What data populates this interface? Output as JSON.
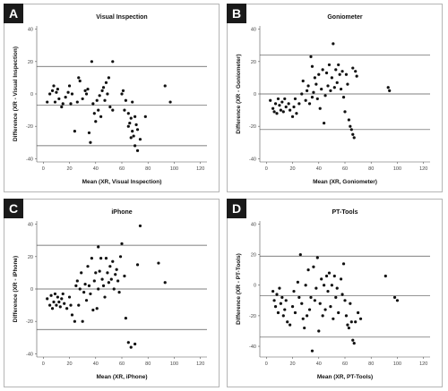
{
  "panels": [
    {
      "letter": "A"
    },
    {
      "letter": "B"
    },
    {
      "letter": "C"
    },
    {
      "letter": "D"
    }
  ],
  "chart_data": [
    {
      "type": "scatter",
      "title": "Visual Inspection",
      "xlabel": "Mean (XR, Visual Inspection)",
      "ylabel": "Difference (XR - Visual Inspection)",
      "xlim": [
        -5,
        125
      ],
      "ylim": [
        -42,
        42
      ],
      "xticks": [
        0,
        20,
        40,
        60,
        80,
        100,
        120
      ],
      "yticks": [
        -40,
        -20,
        0,
        20,
        40
      ],
      "reference_lines": [
        17,
        -7,
        -32
      ],
      "points": [
        [
          3,
          -5
        ],
        [
          5,
          0
        ],
        [
          7,
          2
        ],
        [
          8,
          5
        ],
        [
          9,
          -5
        ],
        [
          10,
          1
        ],
        [
          11,
          3
        ],
        [
          12,
          -3
        ],
        [
          14,
          -8
        ],
        [
          15,
          -6
        ],
        [
          17,
          -2
        ],
        [
          19,
          1
        ],
        [
          20,
          5
        ],
        [
          21,
          -6
        ],
        [
          22,
          0
        ],
        [
          24,
          -23
        ],
        [
          26,
          -5
        ],
        [
          27,
          10
        ],
        [
          28,
          8
        ],
        [
          30,
          -3
        ],
        [
          32,
          2
        ],
        [
          33,
          0
        ],
        [
          34,
          3
        ],
        [
          35,
          -24
        ],
        [
          36,
          -30
        ],
        [
          37,
          20
        ],
        [
          38,
          -6
        ],
        [
          39,
          -12
        ],
        [
          40,
          -17
        ],
        [
          41,
          -4
        ],
        [
          42,
          -10
        ],
        [
          43,
          -1
        ],
        [
          44,
          -14
        ],
        [
          45,
          2
        ],
        [
          46,
          4
        ],
        [
          47,
          -4
        ],
        [
          48,
          7
        ],
        [
          49,
          0
        ],
        [
          50,
          10
        ],
        [
          51,
          -8
        ],
        [
          53,
          20
        ],
        [
          53,
          -10
        ],
        [
          60,
          0
        ],
        [
          61,
          2
        ],
        [
          62,
          -10
        ],
        [
          63,
          -4
        ],
        [
          65,
          -12
        ],
        [
          65,
          -20
        ],
        [
          66,
          -18
        ],
        [
          67,
          -15
        ],
        [
          67,
          -27
        ],
        [
          68,
          -23
        ],
        [
          69,
          -26
        ],
        [
          70,
          -32
        ],
        [
          70,
          -14
        ],
        [
          71,
          -19
        ],
        [
          72,
          -22
        ],
        [
          74,
          -28
        ],
        [
          72,
          -35
        ],
        [
          68,
          -5
        ],
        [
          78,
          -14
        ],
        [
          93,
          5
        ],
        [
          97,
          -5
        ]
      ]
    },
    {
      "type": "scatter",
      "title": "Goniometer",
      "xlabel": "Mean (XR, Goniometer)",
      "ylabel": "Difference (XR - Goniometer)",
      "xlim": [
        -5,
        125
      ],
      "ylim": [
        -42,
        42
      ],
      "xticks": [
        0,
        20,
        40,
        60,
        80,
        100,
        120
      ],
      "yticks": [
        -40,
        -20,
        0,
        20,
        40
      ],
      "reference_lines": [
        24,
        0,
        -22
      ],
      "points": [
        [
          3,
          -4
        ],
        [
          5,
          -9
        ],
        [
          6,
          -11
        ],
        [
          7,
          -6
        ],
        [
          8,
          -12
        ],
        [
          9,
          -3
        ],
        [
          10,
          -7
        ],
        [
          11,
          -10
        ],
        [
          12,
          -5
        ],
        [
          13,
          -11
        ],
        [
          14,
          -3
        ],
        [
          15,
          -8
        ],
        [
          17,
          -6
        ],
        [
          18,
          -10
        ],
        [
          20,
          -14
        ],
        [
          21,
          -8
        ],
        [
          22,
          -3
        ],
        [
          23,
          -12
        ],
        [
          25,
          -6
        ],
        [
          27,
          0
        ],
        [
          28,
          8
        ],
        [
          30,
          -4
        ],
        [
          31,
          2
        ],
        [
          32,
          5
        ],
        [
          33,
          -6
        ],
        [
          34,
          23
        ],
        [
          35,
          17
        ],
        [
          35,
          -2
        ],
        [
          36,
          1
        ],
        [
          37,
          10
        ],
        [
          38,
          6
        ],
        [
          39,
          -3
        ],
        [
          40,
          12
        ],
        [
          41,
          -9
        ],
        [
          42,
          3
        ],
        [
          43,
          15
        ],
        [
          44,
          -18
        ],
        [
          45,
          -1
        ],
        [
          46,
          13
        ],
        [
          47,
          5
        ],
        [
          48,
          18
        ],
        [
          49,
          2
        ],
        [
          50,
          10
        ],
        [
          51,
          31
        ],
        [
          52,
          4
        ],
        [
          53,
          15
        ],
        [
          54,
          7
        ],
        [
          55,
          18
        ],
        [
          56,
          12
        ],
        [
          57,
          3
        ],
        [
          58,
          14
        ],
        [
          59,
          -2
        ],
        [
          60,
          -11
        ],
        [
          61,
          12
        ],
        [
          62,
          6
        ],
        [
          63,
          -16
        ],
        [
          64,
          -20
        ],
        [
          65,
          -22
        ],
        [
          66,
          -25
        ],
        [
          67,
          -27
        ],
        [
          66,
          16
        ],
        [
          68,
          14
        ],
        [
          69,
          11
        ],
        [
          93,
          4
        ],
        [
          94,
          2
        ]
      ]
    },
    {
      "type": "scatter",
      "title": "iPhone",
      "xlabel": "Mean (XR, iPhone)",
      "ylabel": "Difference (XR - iPhone)",
      "xlim": [
        -5,
        125
      ],
      "ylim": [
        -42,
        42
      ],
      "xticks": [
        0,
        20,
        40,
        60,
        80,
        100,
        120
      ],
      "yticks": [
        -40,
        -20,
        0,
        20,
        40
      ],
      "reference_lines": [
        27,
        0,
        -25
      ],
      "points": [
        [
          3,
          -6
        ],
        [
          5,
          -10
        ],
        [
          6,
          -4
        ],
        [
          7,
          -12
        ],
        [
          8,
          -8
        ],
        [
          9,
          -3
        ],
        [
          10,
          -10
        ],
        [
          11,
          -5
        ],
        [
          12,
          -8
        ],
        [
          13,
          -11
        ],
        [
          14,
          -6
        ],
        [
          15,
          -3
        ],
        [
          16,
          -9
        ],
        [
          18,
          -12
        ],
        [
          20,
          -5
        ],
        [
          21,
          -10
        ],
        [
          22,
          -16
        ],
        [
          24,
          -20
        ],
        [
          25,
          2
        ],
        [
          26,
          5
        ],
        [
          27,
          -10
        ],
        [
          28,
          0
        ],
        [
          29,
          10
        ],
        [
          30,
          -20
        ],
        [
          31,
          -2
        ],
        [
          32,
          3
        ],
        [
          33,
          -7
        ],
        [
          34,
          14
        ],
        [
          35,
          2
        ],
        [
          36,
          -3
        ],
        [
          37,
          19
        ],
        [
          38,
          -13
        ],
        [
          39,
          5
        ],
        [
          40,
          10
        ],
        [
          41,
          -12
        ],
        [
          42,
          26
        ],
        [
          42,
          0
        ],
        [
          43,
          11
        ],
        [
          44,
          19
        ],
        [
          45,
          6
        ],
        [
          46,
          2
        ],
        [
          47,
          -5
        ],
        [
          48,
          19
        ],
        [
          49,
          10
        ],
        [
          50,
          4
        ],
        [
          51,
          14
        ],
        [
          52,
          6
        ],
        [
          53,
          17
        ],
        [
          54,
          0
        ],
        [
          55,
          9
        ],
        [
          56,
          12
        ],
        [
          57,
          5
        ],
        [
          58,
          -2
        ],
        [
          59,
          20
        ],
        [
          60,
          28
        ],
        [
          62,
          8
        ],
        [
          63,
          -18
        ],
        [
          65,
          -33
        ],
        [
          67,
          -36
        ],
        [
          70,
          -34
        ],
        [
          72,
          15
        ],
        [
          74,
          39
        ],
        [
          88,
          16
        ],
        [
          93,
          4
        ]
      ]
    },
    {
      "type": "scatter",
      "title": "PT-Tools",
      "xlabel": "Mean (XR, PT-Tools)",
      "ylabel": "Difference (XR - PT-Tools)",
      "xlim": [
        -5,
        125
      ],
      "ylim": [
        -47,
        42
      ],
      "xticks": [
        0,
        20,
        40,
        60,
        80,
        100,
        120
      ],
      "yticks": [
        -40,
        -20,
        0,
        20,
        40
      ],
      "reference_lines": [
        19,
        -7,
        -34
      ],
      "points": [
        [
          5,
          -4
        ],
        [
          6,
          -10
        ],
        [
          7,
          -14
        ],
        [
          8,
          -6
        ],
        [
          9,
          -18
        ],
        [
          10,
          -2
        ],
        [
          11,
          -12
        ],
        [
          12,
          -8
        ],
        [
          13,
          -20
        ],
        [
          14,
          -16
        ],
        [
          15,
          -10
        ],
        [
          16,
          -24
        ],
        [
          18,
          -26
        ],
        [
          20,
          -14
        ],
        [
          21,
          -4
        ],
        [
          22,
          -18
        ],
        [
          24,
          2
        ],
        [
          25,
          -8
        ],
        [
          26,
          20
        ],
        [
          27,
          -12
        ],
        [
          28,
          -22
        ],
        [
          29,
          -28
        ],
        [
          30,
          0
        ],
        [
          31,
          -20
        ],
        [
          32,
          10
        ],
        [
          33,
          -16
        ],
        [
          34,
          -8
        ],
        [
          35,
          -43
        ],
        [
          36,
          12
        ],
        [
          37,
          -10
        ],
        [
          38,
          -2
        ],
        [
          39,
          18
        ],
        [
          40,
          -30
        ],
        [
          41,
          -12
        ],
        [
          42,
          4
        ],
        [
          43,
          -20
        ],
        [
          44,
          0
        ],
        [
          45,
          -16
        ],
        [
          46,
          6
        ],
        [
          47,
          -4
        ],
        [
          48,
          8
        ],
        [
          49,
          -14
        ],
        [
          50,
          0
        ],
        [
          51,
          -22
        ],
        [
          52,
          6
        ],
        [
          53,
          -8
        ],
        [
          54,
          -2
        ],
        [
          55,
          -18
        ],
        [
          57,
          4
        ],
        [
          58,
          -6
        ],
        [
          59,
          14
        ],
        [
          60,
          -10
        ],
        [
          61,
          -20
        ],
        [
          62,
          -26
        ],
        [
          63,
          -28
        ],
        [
          64,
          -12
        ],
        [
          65,
          -24
        ],
        [
          66,
          -36
        ],
        [
          67,
          -38
        ],
        [
          68,
          -24
        ],
        [
          70,
          -18
        ],
        [
          72,
          -22
        ],
        [
          91,
          6
        ],
        [
          98,
          -8
        ],
        [
          100,
          -10
        ]
      ]
    }
  ]
}
